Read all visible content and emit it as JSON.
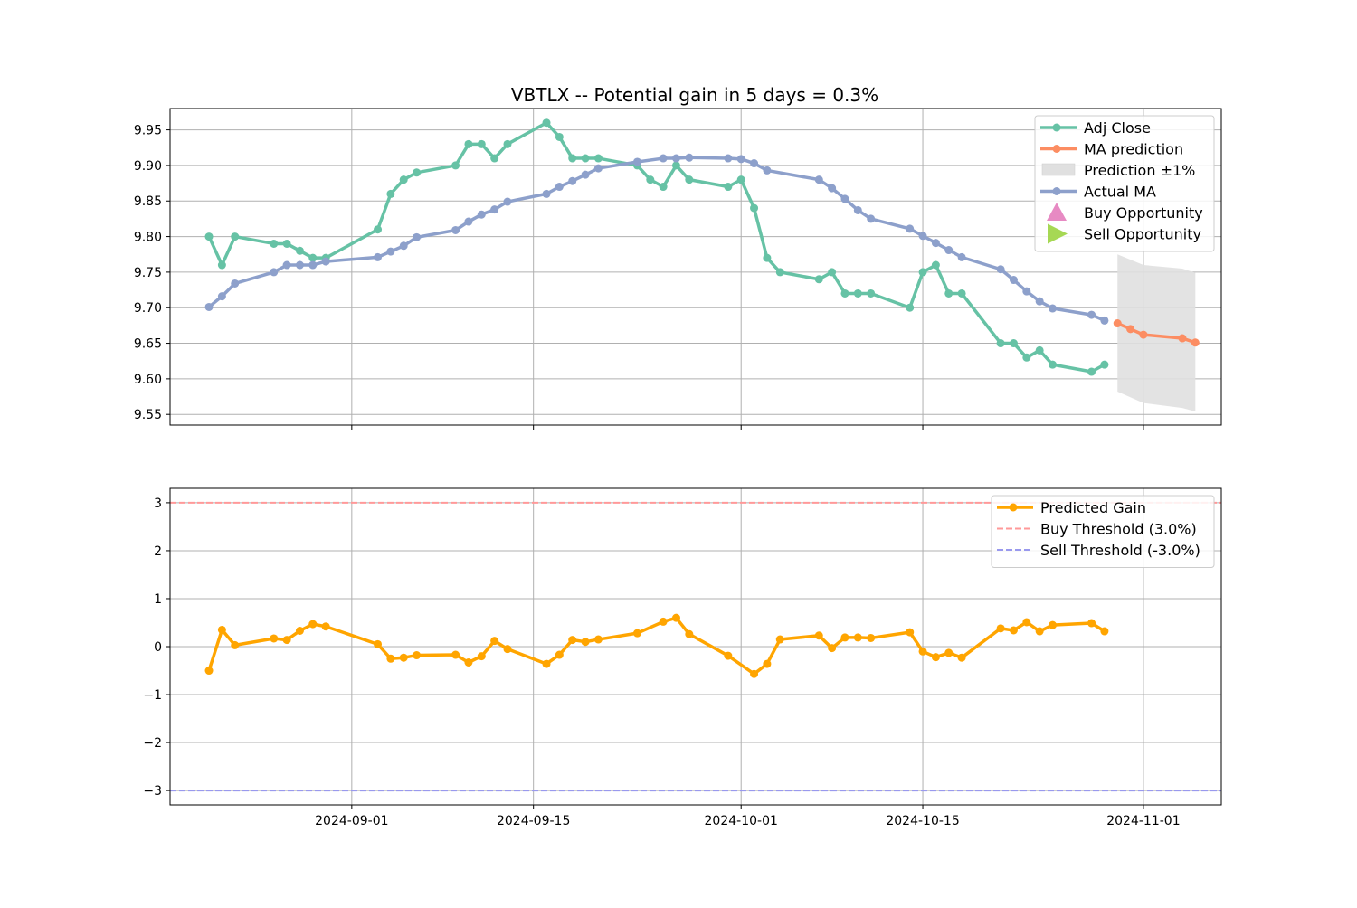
{
  "chart_data": [
    {
      "type": "line",
      "title": "VBTLX -- Potential gain in 5 days = 0.3%",
      "xlabel": "",
      "ylabel": "",
      "xlim": [
        "2024-08-18",
        "2024-11-07"
      ],
      "ylim": [
        9.535,
        9.98
      ],
      "yticks": [
        9.55,
        9.6,
        9.65,
        9.7,
        9.75,
        9.8,
        9.85,
        9.9,
        9.95
      ],
      "ytick_labels": [
        "9.55",
        "9.60",
        "9.65",
        "9.70",
        "9.75",
        "9.80",
        "9.85",
        "9.90",
        "9.95"
      ],
      "xticks": [
        "2024-09-01",
        "2024-09-15",
        "2024-10-01",
        "2024-10-15",
        "2024-11-01"
      ],
      "grid": true,
      "legend_position": "top-right",
      "series": [
        {
          "name": "Adj Close",
          "color": "#66c2a5",
          "x": [
            "2024-08-21",
            "2024-08-22",
            "2024-08-23",
            "2024-08-26",
            "2024-08-27",
            "2024-08-28",
            "2024-08-29",
            "2024-08-30",
            "2024-09-03",
            "2024-09-04",
            "2024-09-05",
            "2024-09-06",
            "2024-09-09",
            "2024-09-10",
            "2024-09-11",
            "2024-09-12",
            "2024-09-13",
            "2024-09-16",
            "2024-09-17",
            "2024-09-18",
            "2024-09-19",
            "2024-09-20",
            "2024-09-23",
            "2024-09-24",
            "2024-09-25",
            "2024-09-26",
            "2024-09-27",
            "2024-09-30",
            "2024-10-01",
            "2024-10-02",
            "2024-10-03",
            "2024-10-04",
            "2024-10-07",
            "2024-10-08",
            "2024-10-09",
            "2024-10-10",
            "2024-10-11",
            "2024-10-14",
            "2024-10-15",
            "2024-10-16",
            "2024-10-17",
            "2024-10-18",
            "2024-10-21",
            "2024-10-22",
            "2024-10-23",
            "2024-10-24",
            "2024-10-25",
            "2024-10-28",
            "2024-10-29"
          ],
          "values": [
            9.8,
            9.76,
            9.8,
            9.79,
            9.79,
            9.78,
            9.77,
            9.77,
            9.81,
            9.86,
            9.88,
            9.89,
            9.9,
            9.93,
            9.93,
            9.91,
            9.93,
            9.96,
            9.94,
            9.91,
            9.91,
            9.91,
            9.9,
            9.88,
            9.87,
            9.9,
            9.88,
            9.87,
            9.88,
            9.84,
            9.77,
            9.75,
            9.74,
            9.75,
            9.72,
            9.72,
            9.72,
            9.7,
            9.75,
            9.76,
            9.72,
            9.72,
            9.65,
            9.65,
            9.63,
            9.64,
            9.62,
            9.61,
            9.62
          ]
        },
        {
          "name": "MA prediction",
          "color": "#fc8d62",
          "x": [
            "2024-10-30",
            "2024-10-31",
            "2024-11-01",
            "2024-11-04",
            "2024-11-05"
          ],
          "values": [
            9.678,
            9.67,
            9.662,
            9.657,
            9.651
          ]
        },
        {
          "name": "Actual MA",
          "color": "#8da0cb",
          "x": [
            "2024-08-21",
            "2024-08-22",
            "2024-08-23",
            "2024-08-26",
            "2024-08-27",
            "2024-08-28",
            "2024-08-29",
            "2024-08-30",
            "2024-09-03",
            "2024-09-04",
            "2024-09-05",
            "2024-09-06",
            "2024-09-09",
            "2024-09-10",
            "2024-09-11",
            "2024-09-12",
            "2024-09-13",
            "2024-09-16",
            "2024-09-17",
            "2024-09-18",
            "2024-09-19",
            "2024-09-20",
            "2024-09-23",
            "2024-09-25",
            "2024-09-26",
            "2024-09-27",
            "2024-09-30",
            "2024-10-01",
            "2024-10-02",
            "2024-10-03",
            "2024-10-07",
            "2024-10-08",
            "2024-10-09",
            "2024-10-10",
            "2024-10-11",
            "2024-10-14",
            "2024-10-15",
            "2024-10-16",
            "2024-10-17",
            "2024-10-18",
            "2024-10-21",
            "2024-10-22",
            "2024-10-23",
            "2024-10-24",
            "2024-10-25",
            "2024-10-28",
            "2024-10-29"
          ],
          "values": [
            9.701,
            9.716,
            9.734,
            9.75,
            9.76,
            9.76,
            9.76,
            9.765,
            9.771,
            9.779,
            9.787,
            9.799,
            9.809,
            9.821,
            9.831,
            9.838,
            9.849,
            9.86,
            9.87,
            9.878,
            9.887,
            9.896,
            9.905,
            9.91,
            9.91,
            9.911,
            9.91,
            9.909,
            9.903,
            9.893,
            9.88,
            9.868,
            9.853,
            9.837,
            9.825,
            9.811,
            9.801,
            9.791,
            9.781,
            9.771,
            9.754,
            9.739,
            9.723,
            9.709,
            9.699,
            9.69,
            9.682
          ]
        }
      ],
      "band": {
        "name": "Prediction ±1%",
        "color": "#e0e0e0",
        "x": [
          "2024-10-30",
          "2024-11-01",
          "2024-11-04",
          "2024-11-05"
        ],
        "upper": [
          9.775,
          9.76,
          9.755,
          9.749
        ],
        "lower": [
          9.582,
          9.566,
          9.559,
          9.554
        ]
      },
      "legend": [
        {
          "label": "Adj Close",
          "kind": "line",
          "color": "#66c2a5"
        },
        {
          "label": "MA prediction",
          "kind": "line",
          "color": "#fc8d62"
        },
        {
          "label": "Prediction ±1%",
          "kind": "patch",
          "color": "#e0e0e0"
        },
        {
          "label": "Actual MA",
          "kind": "line",
          "color": "#8da0cb"
        },
        {
          "label": "Buy Opportunity",
          "kind": "triangle-up",
          "color": "#e78ac3"
        },
        {
          "label": "Sell Opportunity",
          "kind": "triangle-right",
          "color": "#a6d854"
        }
      ]
    },
    {
      "type": "line",
      "title": "",
      "xlabel": "",
      "ylabel": "",
      "xlim": [
        "2024-08-18",
        "2024-11-07"
      ],
      "ylim": [
        -3.3,
        3.3
      ],
      "yticks": [
        -3,
        -2,
        -1,
        0,
        1,
        2,
        3
      ],
      "ytick_labels": [
        "−3",
        "−2",
        "−1",
        "0",
        "1",
        "2",
        "3"
      ],
      "xticks": [
        "2024-09-01",
        "2024-09-15",
        "2024-10-01",
        "2024-10-15",
        "2024-11-01"
      ],
      "grid": true,
      "legend_position": "top-right",
      "series": [
        {
          "name": "Predicted Gain",
          "color": "#ffa500",
          "x": [
            "2024-08-21",
            "2024-08-22",
            "2024-08-23",
            "2024-08-26",
            "2024-08-27",
            "2024-08-28",
            "2024-08-29",
            "2024-08-30",
            "2024-09-03",
            "2024-09-04",
            "2024-09-05",
            "2024-09-06",
            "2024-09-09",
            "2024-09-10",
            "2024-09-11",
            "2024-09-12",
            "2024-09-13",
            "2024-09-16",
            "2024-09-17",
            "2024-09-18",
            "2024-09-19",
            "2024-09-20",
            "2024-09-23",
            "2024-09-25",
            "2024-09-26",
            "2024-09-27",
            "2024-09-30",
            "2024-10-02",
            "2024-10-03",
            "2024-10-04",
            "2024-10-07",
            "2024-10-08",
            "2024-10-09",
            "2024-10-10",
            "2024-10-11",
            "2024-10-14",
            "2024-10-15",
            "2024-10-16",
            "2024-10-17",
            "2024-10-18",
            "2024-10-21",
            "2024-10-22",
            "2024-10-23",
            "2024-10-24",
            "2024-10-25",
            "2024-10-28",
            "2024-10-29"
          ],
          "values": [
            -0.5,
            0.35,
            0.03,
            0.17,
            0.14,
            0.33,
            0.47,
            0.42,
            0.05,
            -0.25,
            -0.23,
            -0.18,
            -0.17,
            -0.33,
            -0.2,
            0.12,
            -0.05,
            -0.36,
            -0.17,
            0.14,
            0.1,
            0.15,
            0.28,
            0.52,
            0.6,
            0.26,
            -0.19,
            -0.57,
            -0.36,
            0.15,
            0.23,
            -0.03,
            0.19,
            0.19,
            0.18,
            0.3,
            -0.1,
            -0.22,
            -0.13,
            -0.23,
            0.38,
            0.34,
            0.51,
            0.32,
            0.45,
            0.49,
            0.32
          ]
        }
      ],
      "thresholds": [
        {
          "name": "Buy Threshold (3.0%)",
          "value": 3.0,
          "color": "#ff9999"
        },
        {
          "name": "Sell Threshold (-3.0%)",
          "value": -3.0,
          "color": "#9999ee"
        }
      ],
      "legend": [
        {
          "label": "Predicted Gain",
          "kind": "line",
          "color": "#ffa500"
        },
        {
          "label": "Buy Threshold (3.0%)",
          "kind": "dash",
          "color": "#ff9999"
        },
        {
          "label": "Sell Threshold (-3.0%)",
          "kind": "dash",
          "color": "#9999ee"
        }
      ]
    }
  ]
}
